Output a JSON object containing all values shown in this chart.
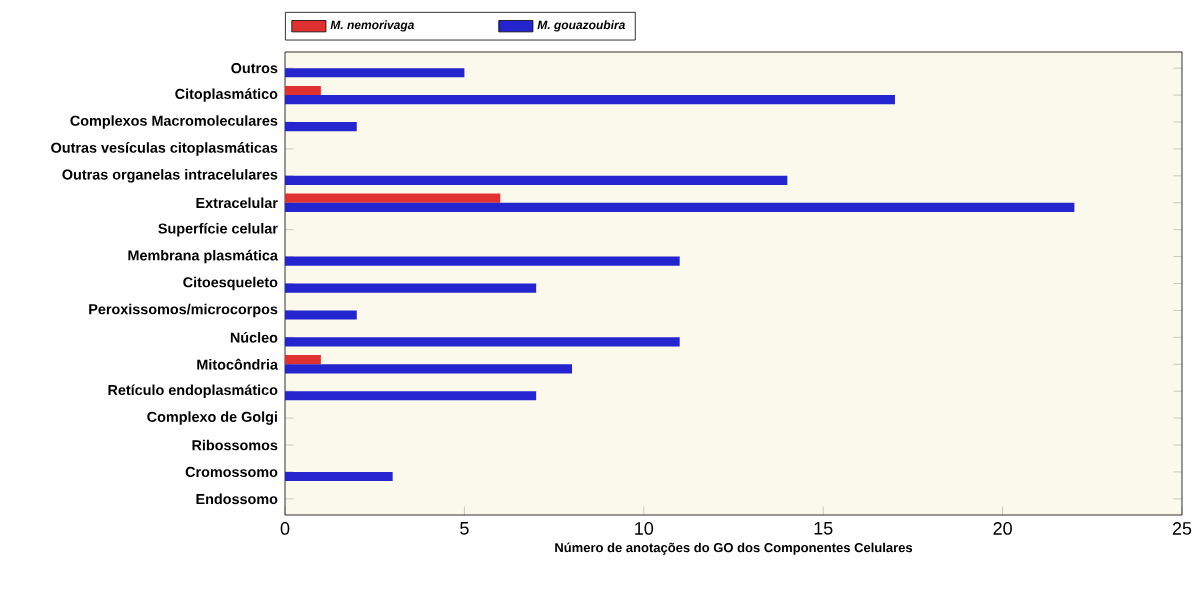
{
  "chart_data": {
    "type": "bar",
    "orientation": "horizontal",
    "xlabel": "Número de anotações do GO dos Componentes Celulares",
    "categories": [
      "Outros",
      "Citoplasmático",
      "Complexos Macromoleculares",
      "Outras vesículas citoplasmáticas",
      "Outras organelas intracelulares",
      "Extracelular",
      "Superfície celular",
      "Membrana plasmática",
      "Citoesqueleto",
      "Peroxissomos/microcorpos",
      "Núcleo",
      "Mitocôndria",
      "Retículo endoplasmático",
      "Complexo de Golgi",
      "Ribossomos",
      "Cromossomo",
      "Endossomo"
    ],
    "series": [
      {
        "name": "M. nemorivaga",
        "color": "#e03030",
        "values": [
          0,
          1,
          0,
          0,
          0,
          6,
          0,
          0,
          0,
          0,
          0,
          1,
          0,
          0,
          0,
          0,
          0
        ]
      },
      {
        "name": "M. gouazoubira",
        "color": "#2525d0",
        "values": [
          5,
          17,
          2,
          0,
          14,
          22,
          0,
          11,
          7,
          2,
          11,
          8,
          7,
          0,
          0,
          3,
          0
        ]
      }
    ],
    "xlim": [
      0,
      25
    ],
    "xticks": [
      0,
      5,
      10,
      15,
      20,
      25
    ],
    "legend": "top",
    "grid": false
  }
}
